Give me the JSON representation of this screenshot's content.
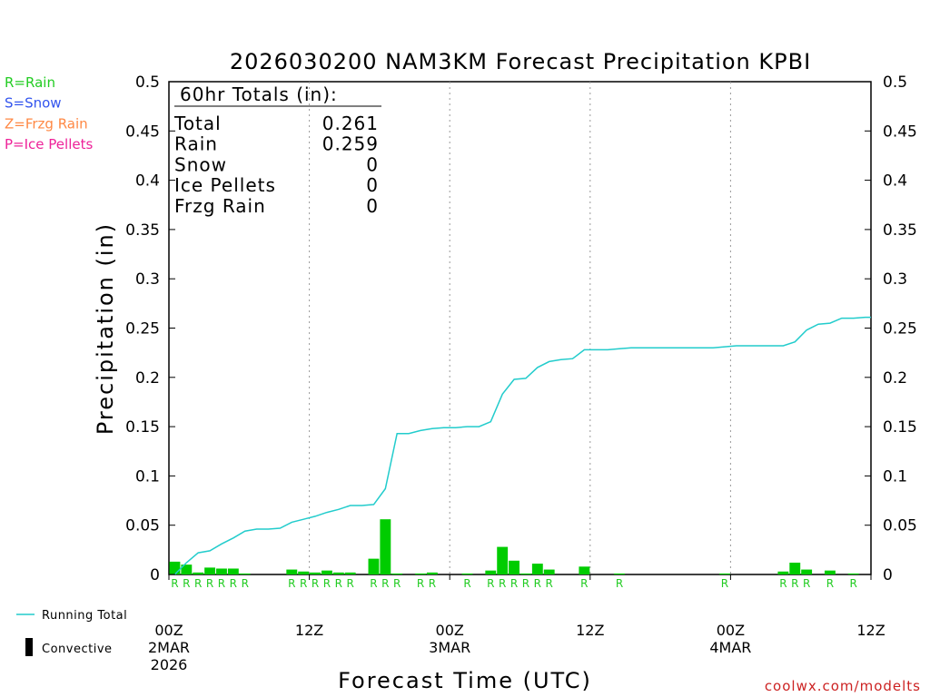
{
  "chart_data": {
    "type": "bar",
    "title": "2026030200 NAM3KM Forecast Precipitation KPBI",
    "xlabel": "Forecast Time (UTC)",
    "ylabel": "Precipitation (in)",
    "ylim": [
      0,
      0.5
    ],
    "xlim_hours": [
      0,
      60
    ],
    "y_ticks": [
      0,
      0.05,
      0.1,
      0.15,
      0.2,
      0.25,
      0.3,
      0.35,
      0.4,
      0.45,
      0.5
    ],
    "y_tick_labels": [
      "0",
      "0.05",
      "0.1",
      "0.15",
      "0.2",
      "0.25",
      "0.3",
      "0.35",
      "0.4",
      "0.45",
      "0.5"
    ],
    "x_ticks": [
      {
        "hour": 0,
        "lines": [
          "00Z",
          "2MAR",
          "2026"
        ]
      },
      {
        "hour": 12,
        "lines": [
          "12Z"
        ]
      },
      {
        "hour": 24,
        "lines": [
          "00Z",
          "3MAR"
        ]
      },
      {
        "hour": 36,
        "lines": [
          "12Z"
        ]
      },
      {
        "hour": 48,
        "lines": [
          "00Z",
          "4MAR"
        ]
      },
      {
        "hour": 60,
        "lines": [
          "12Z"
        ]
      }
    ],
    "gridlines_hours": [
      12,
      24,
      36,
      48
    ],
    "legend": {
      "ptype_keys": [
        {
          "text": "R=Rain",
          "color": "#22cc22"
        },
        {
          "text": "S=Snow",
          "color": "#3355ee"
        },
        {
          "text": "Z=Frzg Rain",
          "color": "#ff8844"
        },
        {
          "text": "P=Ice Pellets",
          "color": "#ee2299"
        }
      ],
      "running_total_label": "Running Total",
      "convective_label": "Convective"
    },
    "totals_box": {
      "title": "60hr Totals (in):",
      "rows": [
        {
          "label": "Total",
          "value": "0.261"
        },
        {
          "label": "Rain",
          "value": "0.259"
        },
        {
          "label": "Snow",
          "value": "0"
        },
        {
          "label": "Ice Pellets",
          "value": "0"
        },
        {
          "label": "Frzg Rain",
          "value": "0"
        }
      ]
    },
    "series": [
      {
        "name": "Hourly Precipitation",
        "color": "#00cc00",
        "hours": [
          1,
          2,
          3,
          4,
          5,
          6,
          7,
          11,
          12,
          13,
          14,
          15,
          16,
          18,
          19,
          20,
          22,
          23,
          26,
          28,
          29,
          30,
          31,
          32,
          33,
          36,
          39,
          48,
          53,
          54,
          55,
          57,
          59
        ],
        "values": [
          0.013,
          0.01,
          0.002,
          0.007,
          0.006,
          0.006,
          0.001,
          0.005,
          0.003,
          0.002,
          0.004,
          0.002,
          0.002,
          0.016,
          0.056,
          0.001,
          0.001,
          0.002,
          0.001,
          0.004,
          0.028,
          0.014,
          0.001,
          0.011,
          0.005,
          0.008,
          0.001,
          0.001,
          0.003,
          0.012,
          0.005,
          0.004,
          0.001
        ]
      },
      {
        "name": "Running Total",
        "color": "#22cccc",
        "hours": [
          0.5,
          1.5,
          2.5,
          3.5,
          4.5,
          5.5,
          6.5,
          7.5,
          8.5,
          9.5,
          10.5,
          11.5,
          12.5,
          13.5,
          14.5,
          15.5,
          16.5,
          17.5,
          18.5,
          19.5,
          20.5,
          21.5,
          22.5,
          23.5,
          24.5,
          25.5,
          26.5,
          27.5,
          28.5,
          29.5,
          30.5,
          31.5,
          32.5,
          33.5,
          34.5,
          35.5,
          36.5,
          37.5,
          38.5,
          39.5,
          40.5,
          41.5,
          42.5,
          43.5,
          44.5,
          45.5,
          46.5,
          47.5,
          48.5,
          49.5,
          50.5,
          51.5,
          52.5,
          53.5,
          54.5,
          55.5,
          56.5,
          57.5,
          58.5,
          59.5,
          60.0
        ],
        "values": [
          0.0,
          0.012,
          0.022,
          0.024,
          0.031,
          0.037,
          0.044,
          0.046,
          0.046,
          0.047,
          0.053,
          0.056,
          0.059,
          0.063,
          0.066,
          0.07,
          0.07,
          0.071,
          0.087,
          0.143,
          0.143,
          0.146,
          0.148,
          0.149,
          0.149,
          0.15,
          0.15,
          0.155,
          0.183,
          0.198,
          0.199,
          0.21,
          0.216,
          0.218,
          0.219,
          0.228,
          0.228,
          0.228,
          0.229,
          0.23,
          0.23,
          0.23,
          0.23,
          0.23,
          0.23,
          0.23,
          0.23,
          0.231,
          0.232,
          0.232,
          0.232,
          0.232,
          0.232,
          0.236,
          0.248,
          0.254,
          0.255,
          0.26,
          0.26,
          0.261,
          0.261
        ]
      }
    ],
    "ptype_markers": {
      "color": "#22cc22",
      "hours": [
        1,
        2,
        3,
        4,
        5,
        6,
        7,
        11,
        12,
        13,
        14,
        15,
        16,
        18,
        19,
        20,
        22,
        23,
        26,
        28,
        29,
        30,
        31,
        32,
        33,
        36,
        39,
        48,
        53,
        54,
        55,
        57,
        59
      ],
      "labels": [
        "R",
        "R",
        "R",
        "R",
        "R",
        "R",
        "R",
        "R",
        "R",
        "R",
        "R",
        "R",
        "R",
        "R",
        "R",
        "R",
        "R",
        "R",
        "R",
        "R",
        "R",
        "R",
        "R",
        "R",
        "R",
        "R",
        "R",
        "R",
        "R",
        "R",
        "R",
        "R",
        "R"
      ]
    },
    "credit": "coolwx.com/modelts"
  }
}
